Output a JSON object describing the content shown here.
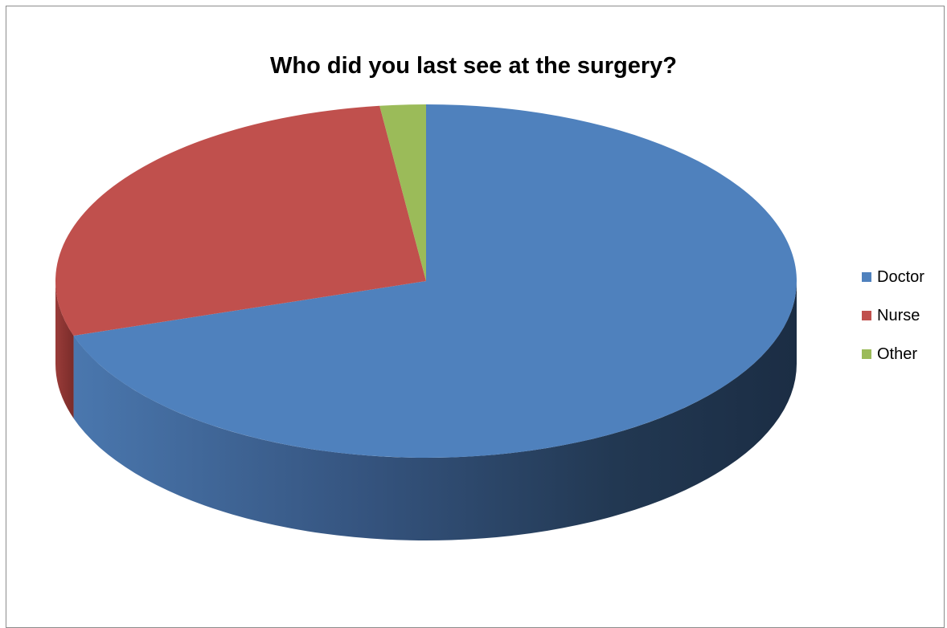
{
  "chart_data": {
    "type": "pie",
    "title": "Who did you last see at the surgery?",
    "categories": [
      "Doctor",
      "Nurse",
      "Other"
    ],
    "values": [
      70,
      28,
      2
    ],
    "colors": [
      "#4f81bd",
      "#c0504d",
      "#9bbb59"
    ],
    "legend_position": "right",
    "style": "3d"
  }
}
